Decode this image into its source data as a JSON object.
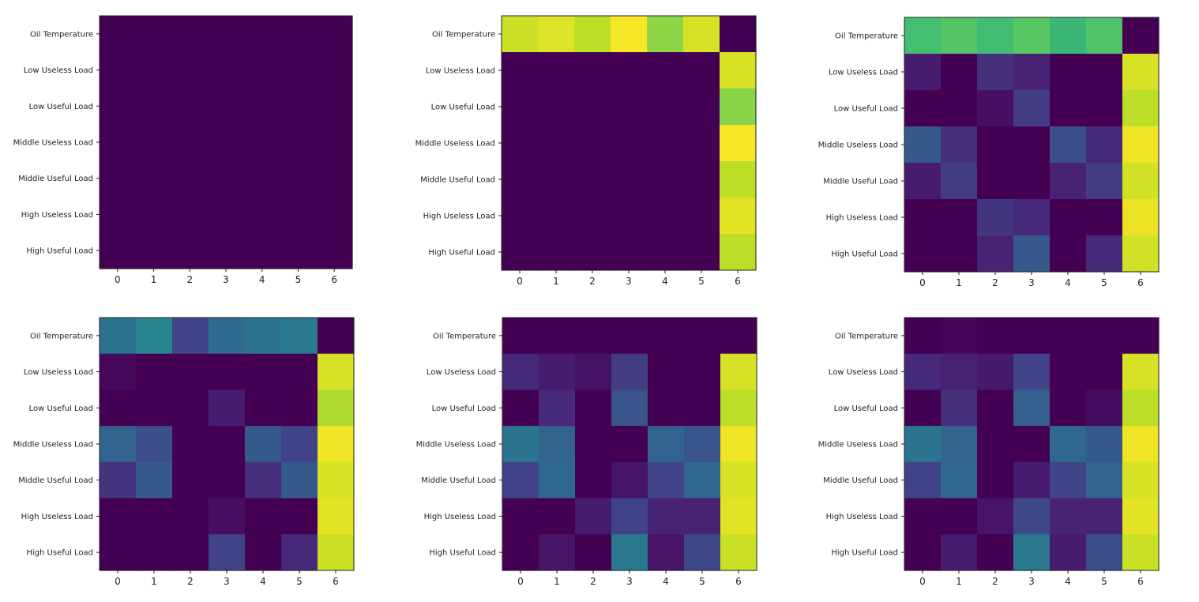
{
  "chart_data": [
    {
      "type": "heatmap",
      "rows": [
        "Oil Temperature",
        "Low Useless Load",
        "Low Useful Load",
        "Middle Useless Load",
        "Middle Useful Load",
        "High Useless Load",
        "High Useful Load"
      ],
      "cols": [
        "0",
        "1",
        "2",
        "3",
        "4",
        "5",
        "6"
      ],
      "vlim": [
        0,
        1
      ],
      "colormap": "viridis",
      "values": [
        [
          0,
          0,
          0,
          0,
          0,
          0,
          0
        ],
        [
          0,
          0,
          0,
          0,
          0,
          0,
          0
        ],
        [
          0,
          0,
          0,
          0,
          0,
          0,
          0
        ],
        [
          0,
          0,
          0,
          0,
          0,
          0,
          0
        ],
        [
          0,
          0,
          0,
          0,
          0,
          0,
          0
        ],
        [
          0,
          0,
          0,
          0,
          0,
          0,
          0
        ],
        [
          0,
          0,
          0,
          0,
          0,
          0,
          0
        ]
      ]
    },
    {
      "type": "heatmap",
      "rows": [
        "Oil Temperature",
        "Low Useless Load",
        "Low Useful Load",
        "Middle Useless Load",
        "Middle Useful Load",
        "High Useless Load",
        "High Useful Load"
      ],
      "cols": [
        "0",
        "1",
        "2",
        "3",
        "4",
        "5",
        "6"
      ],
      "vlim": [
        0,
        1
      ],
      "colormap": "viridis",
      "values": [
        [
          0.92,
          0.95,
          0.9,
          0.99,
          0.83,
          0.94,
          0
        ],
        [
          0,
          0,
          0,
          0,
          0,
          0,
          0.94
        ],
        [
          0,
          0,
          0,
          0,
          0,
          0,
          0.82
        ],
        [
          0,
          0,
          0,
          0,
          0,
          0,
          0.99
        ],
        [
          0,
          0,
          0,
          0,
          0,
          0,
          0.9
        ],
        [
          0,
          0,
          0,
          0,
          0,
          0,
          0.96
        ],
        [
          0,
          0,
          0,
          0,
          0,
          0,
          0.9
        ]
      ]
    },
    {
      "type": "heatmap",
      "rows": [
        "Oil Temperature",
        "Low Useless Load",
        "Low Useful Load",
        "Middle Useless Load",
        "Middle Useful Load",
        "High Useless Load",
        "High Useful Load"
      ],
      "cols": [
        "0",
        "1",
        "2",
        "3",
        "4",
        "5",
        "6"
      ],
      "vlim": [
        0,
        1
      ],
      "colormap": "viridis",
      "values": [
        [
          0.7,
          0.73,
          0.69,
          0.74,
          0.67,
          0.72,
          0
        ],
        [
          0.08,
          0,
          0.14,
          0.1,
          0,
          0,
          0.94
        ],
        [
          0,
          0,
          0.04,
          0.18,
          0,
          0,
          0.9
        ],
        [
          0.28,
          0.14,
          0,
          0,
          0.24,
          0.12,
          0.98
        ],
        [
          0.08,
          0.18,
          0,
          0,
          0.1,
          0.18,
          0.93
        ],
        [
          0,
          0,
          0.16,
          0.12,
          0,
          0,
          0.97
        ],
        [
          0,
          0,
          0.1,
          0.28,
          0,
          0.12,
          0.93
        ]
      ]
    },
    {
      "type": "heatmap",
      "rows": [
        "Oil Temperature",
        "Low Useless Load",
        "Low Useful Load",
        "Middle Useless Load",
        "Middle Useful Load",
        "High Useless Load",
        "High Useful Load"
      ],
      "cols": [
        "0",
        "1",
        "2",
        "3",
        "4",
        "5",
        "6"
      ],
      "vlim": [
        0,
        1
      ],
      "colormap": "viridis",
      "values": [
        [
          0.38,
          0.45,
          0.2,
          0.35,
          0.38,
          0.4,
          0
        ],
        [
          0.02,
          0,
          0,
          0,
          0,
          0,
          0.94
        ],
        [
          0,
          0,
          0,
          0.08,
          0,
          0,
          0.88
        ],
        [
          0.32,
          0.24,
          0,
          0,
          0.28,
          0.2,
          0.98
        ],
        [
          0.15,
          0.28,
          0,
          0,
          0.14,
          0.28,
          0.94
        ],
        [
          0,
          0,
          0,
          0.04,
          0,
          0,
          0.96
        ],
        [
          0,
          0,
          0,
          0.2,
          0,
          0.12,
          0.92
        ]
      ]
    },
    {
      "type": "heatmap",
      "rows": [
        "Oil Temperature",
        "Low Useless Load",
        "Low Useful Load",
        "Middle Useless Load",
        "Middle Useful Load",
        "High Useless Load",
        "High Useful Load"
      ],
      "cols": [
        "0",
        "1",
        "2",
        "3",
        "4",
        "5",
        "6"
      ],
      "vlim": [
        0,
        1
      ],
      "colormap": "viridis",
      "values": [
        [
          0,
          0,
          0,
          0,
          0,
          0,
          0
        ],
        [
          0.12,
          0.08,
          0.05,
          0.18,
          0,
          0,
          0.94
        ],
        [
          0,
          0.12,
          0,
          0.26,
          0,
          0,
          0.9
        ],
        [
          0.38,
          0.32,
          0,
          0,
          0.32,
          0.26,
          0.98
        ],
        [
          0.2,
          0.34,
          0,
          0.06,
          0.2,
          0.34,
          0.94
        ],
        [
          0,
          0,
          0.08,
          0.2,
          0.1,
          0.1,
          0.96
        ],
        [
          0,
          0.06,
          0,
          0.4,
          0.06,
          0.22,
          0.92
        ]
      ]
    },
    {
      "type": "heatmap",
      "rows": [
        "Oil Temperature",
        "Low Useless Load",
        "Low Useful Load",
        "Middle Useless Load",
        "Middle Useful Load",
        "High Useless Load",
        "High Useful Load"
      ],
      "cols": [
        "0",
        "1",
        "2",
        "3",
        "4",
        "5",
        "6"
      ],
      "vlim": [
        0,
        1
      ],
      "colormap": "viridis",
      "values": [
        [
          0,
          0.01,
          0,
          0,
          0,
          0,
          0
        ],
        [
          0.12,
          0.09,
          0.07,
          0.2,
          0,
          0,
          0.94
        ],
        [
          0,
          0.14,
          0,
          0.3,
          0,
          0.03,
          0.9
        ],
        [
          0.38,
          0.32,
          0,
          0,
          0.34,
          0.28,
          0.98
        ],
        [
          0.2,
          0.34,
          0,
          0.08,
          0.2,
          0.32,
          0.94
        ],
        [
          0,
          0,
          0.06,
          0.22,
          0.1,
          0.1,
          0.96
        ],
        [
          0,
          0.08,
          0,
          0.4,
          0.08,
          0.24,
          0.92
        ]
      ]
    }
  ]
}
